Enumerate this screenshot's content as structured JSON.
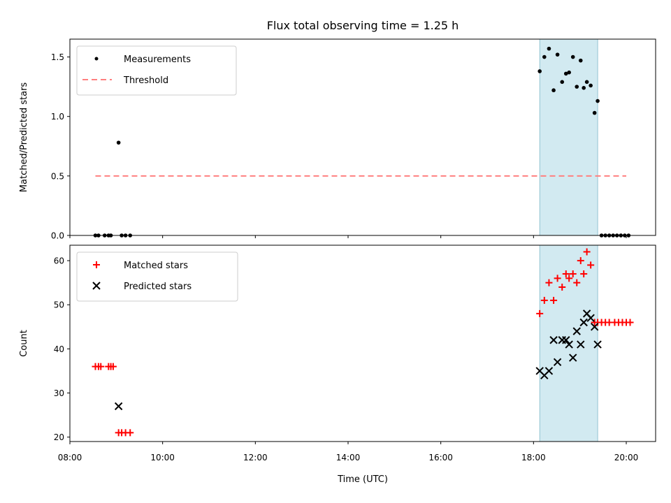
{
  "chart_data": [
    {
      "type": "scatter",
      "title": "Flux total observing time = 1.25 h",
      "xlabel": "",
      "ylabel": "Matched/Predicted stars",
      "ylim": [
        0,
        1.65
      ],
      "yticks": [
        "0.0",
        "0.5",
        "1.0",
        "1.5"
      ],
      "ytick_values": [
        0,
        0.5,
        1.0,
        1.5
      ],
      "legend_position": "upper-left",
      "shaded_region": {
        "x_start": "18:08",
        "x_end": "19:23",
        "color": "#add8e6"
      },
      "threshold": {
        "name": "Threshold",
        "value": 0.5,
        "x_start": "08:33",
        "x_end": "20:00",
        "color": "#ff7f7f"
      },
      "series": [
        {
          "name": "Measurements",
          "marker": "dot",
          "color": "#000000",
          "points": [
            [
              "08:33",
              0.0
            ],
            [
              "08:37",
              0.0
            ],
            [
              "08:45",
              0.0
            ],
            [
              "08:50",
              0.0
            ],
            [
              "08:53",
              0.0
            ],
            [
              "09:03",
              0.78
            ],
            [
              "09:07",
              0.0
            ],
            [
              "09:12",
              0.0
            ],
            [
              "09:18",
              0.0
            ],
            [
              "18:08",
              1.38
            ],
            [
              "18:14",
              1.5
            ],
            [
              "18:20",
              1.57
            ],
            [
              "18:26",
              1.22
            ],
            [
              "18:31",
              1.52
            ],
            [
              "18:37",
              1.29
            ],
            [
              "18:42",
              1.36
            ],
            [
              "18:46",
              1.37
            ],
            [
              "18:51",
              1.5
            ],
            [
              "18:56",
              1.25
            ],
            [
              "19:01",
              1.47
            ],
            [
              "19:05",
              1.24
            ],
            [
              "19:09",
              1.29
            ],
            [
              "19:14",
              1.26
            ],
            [
              "19:19",
              1.03
            ],
            [
              "19:23",
              1.13
            ],
            [
              "19:28",
              0.0
            ],
            [
              "19:33",
              0.0
            ],
            [
              "19:38",
              0.0
            ],
            [
              "19:43",
              0.0
            ],
            [
              "19:48",
              0.0
            ],
            [
              "19:53",
              0.0
            ],
            [
              "19:58",
              0.0
            ],
            [
              "20:03",
              0.0
            ]
          ]
        }
      ]
    },
    {
      "type": "scatter",
      "title": "",
      "xlabel": "Time (UTC)",
      "ylabel": "Count",
      "ylim": [
        19,
        63.5
      ],
      "xlim": [
        "08:00",
        "20:38"
      ],
      "xticks": [
        "08:00",
        "10:00",
        "12:00",
        "14:00",
        "16:00",
        "18:00",
        "20:00"
      ],
      "yticks": [
        "20",
        "30",
        "40",
        "50",
        "60"
      ],
      "ytick_values": [
        20,
        30,
        40,
        50,
        60
      ],
      "legend_position": "upper-left",
      "shaded_region": {
        "x_start": "18:08",
        "x_end": "19:23",
        "color": "#add8e6"
      },
      "series": [
        {
          "name": "Matched stars",
          "marker": "plus",
          "color": "#ff0000",
          "points": [
            [
              "08:33",
              36
            ],
            [
              "08:37",
              36
            ],
            [
              "08:40",
              36
            ],
            [
              "08:50",
              36
            ],
            [
              "08:53",
              36
            ],
            [
              "08:56",
              36
            ],
            [
              "09:03",
              21
            ],
            [
              "09:07",
              21
            ],
            [
              "09:12",
              21
            ],
            [
              "09:18",
              21
            ],
            [
              "18:08",
              48
            ],
            [
              "18:14",
              51
            ],
            [
              "18:20",
              55
            ],
            [
              "18:26",
              51
            ],
            [
              "18:31",
              56
            ],
            [
              "18:37",
              54
            ],
            [
              "18:42",
              57
            ],
            [
              "18:46",
              56
            ],
            [
              "18:51",
              57
            ],
            [
              "18:56",
              55
            ],
            [
              "19:01",
              60
            ],
            [
              "19:05",
              57
            ],
            [
              "19:09",
              62
            ],
            [
              "19:14",
              59
            ],
            [
              "19:19",
              46
            ],
            [
              "19:23",
              46
            ],
            [
              "19:28",
              46
            ],
            [
              "19:33",
              46
            ],
            [
              "19:38",
              46
            ],
            [
              "19:45",
              46
            ],
            [
              "19:50",
              46
            ],
            [
              "19:55",
              46
            ],
            [
              "20:00",
              46
            ],
            [
              "20:05",
              46
            ]
          ]
        },
        {
          "name": "Predicted stars",
          "marker": "x",
          "color": "#000000",
          "points": [
            [
              "09:03",
              27
            ],
            [
              "18:08",
              35
            ],
            [
              "18:14",
              34
            ],
            [
              "18:20",
              35
            ],
            [
              "18:26",
              42
            ],
            [
              "18:31",
              37
            ],
            [
              "18:37",
              42
            ],
            [
              "18:42",
              42
            ],
            [
              "18:46",
              41
            ],
            [
              "18:51",
              38
            ],
            [
              "18:56",
              44
            ],
            [
              "19:01",
              41
            ],
            [
              "19:05",
              46
            ],
            [
              "19:09",
              48
            ],
            [
              "19:14",
              47
            ],
            [
              "19:19",
              45
            ],
            [
              "19:23",
              41
            ]
          ]
        }
      ]
    }
  ]
}
